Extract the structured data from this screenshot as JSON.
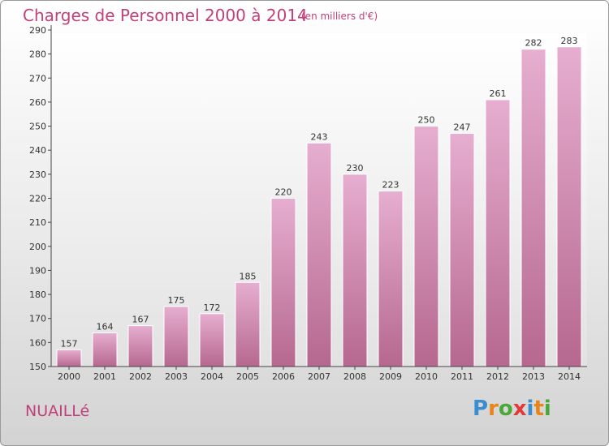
{
  "title": "Charges de Personnel 2000 à 2014",
  "subtitle": "(en milliers d'€)",
  "town": "NUAILLé",
  "logo": {
    "text": "Proxiti",
    "letter_colors": [
      "#3a8ed0",
      "#e8851a",
      "#4aa83a",
      "#e23a3a",
      "#3a8ed0",
      "#e8851a",
      "#4aa83a"
    ]
  },
  "colors": {
    "bar_top": "#e6aed0",
    "bar_bottom": "#b6688f",
    "bar_edge": "#ffffff",
    "text_accent": "#c2407a",
    "plot_bg_top": "#ffffff",
    "plot_bg_bottom": "#e2e2e2"
  },
  "chart_data": {
    "type": "bar",
    "title": "Charges de Personnel 2000 à 2014",
    "subtitle": "(en milliers d'€)",
    "categories": [
      "2000",
      "2001",
      "2002",
      "2003",
      "2004",
      "2005",
      "2006",
      "2007",
      "2008",
      "2009",
      "2010",
      "2011",
      "2012",
      "2013",
      "2014"
    ],
    "values": [
      157,
      164,
      167,
      175,
      172,
      185,
      220,
      243,
      230,
      223,
      250,
      247,
      261,
      282,
      283
    ],
    "ylim": [
      150,
      290
    ],
    "yticks": [
      150,
      160,
      170,
      180,
      190,
      200,
      210,
      220,
      230,
      240,
      250,
      260,
      270,
      280,
      290
    ],
    "grid": false,
    "data_labels": true
  }
}
